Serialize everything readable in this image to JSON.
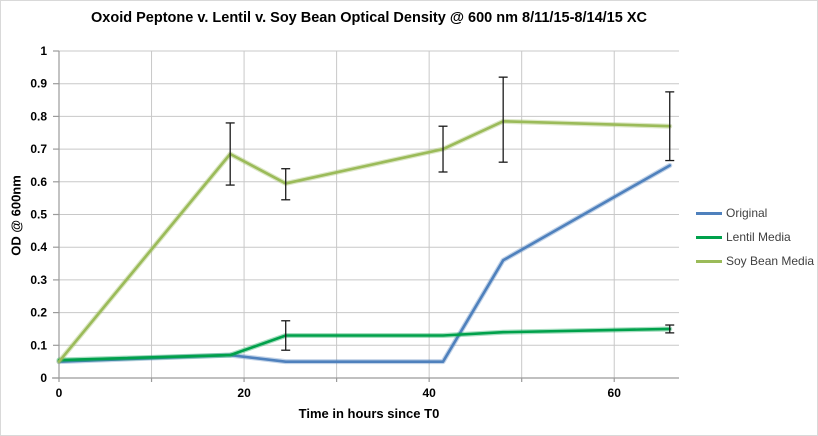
{
  "chart_data": {
    "type": "line",
    "title": "Oxoid Peptone v. Lentil v. Soy Bean Optical Density @ 600 nm 8/11/15-8/14/15 XC",
    "xlabel": "Time in hours since T0",
    "ylabel": "OD @ 600nm",
    "x": [
      0,
      18.5,
      24.5,
      41.5,
      48,
      66
    ],
    "xlim": [
      0,
      67
    ],
    "ylim": [
      0,
      1
    ],
    "grid": true,
    "legend_position": "right",
    "x_ticks": {
      "values": [
        0,
        20,
        40,
        60
      ],
      "labels": [
        "0",
        "20",
        "40",
        "60"
      ]
    },
    "x_gridlines": [
      10,
      20,
      30,
      40,
      50,
      60
    ],
    "y_ticks": {
      "values": [
        0,
        0.1,
        0.2,
        0.3,
        0.4,
        0.5,
        0.6,
        0.7,
        0.8,
        0.9,
        1
      ],
      "labels": [
        "0",
        "0.1",
        "0.2",
        "0.3",
        "0.4",
        "0.5",
        "0.6",
        "0.7",
        "0.8",
        "0.9",
        "1"
      ]
    },
    "series": [
      {
        "name": "Original",
        "color": "#4F81BD",
        "values": [
          0.05,
          0.07,
          0.05,
          0.05,
          0.36,
          0.65
        ],
        "error_bars": []
      },
      {
        "name": "Lentil Media",
        "color": "#00A14B",
        "values": [
          0.055,
          0.07,
          0.13,
          0.13,
          0.14,
          0.15
        ],
        "error_bars": [
          {
            "x": 24.5,
            "v": 0.13,
            "plus": 0.045,
            "minus": 0.045
          },
          {
            "x": 66,
            "v": 0.15,
            "plus": 0.012,
            "minus": 0.012
          }
        ]
      },
      {
        "name": "Soy Bean Media",
        "color": "#9BBB59",
        "values": [
          0.05,
          0.685,
          0.595,
          0.7,
          0.785,
          0.77
        ],
        "error_bars": [
          {
            "x": 18.5,
            "v": 0.685,
            "plus": 0.095,
            "minus": 0.095
          },
          {
            "x": 24.5,
            "v": 0.595,
            "plus": 0.045,
            "minus": 0.05
          },
          {
            "x": 41.5,
            "v": 0.7,
            "plus": 0.07,
            "minus": 0.07
          },
          {
            "x": 48,
            "v": 0.785,
            "plus": 0.135,
            "minus": 0.125
          },
          {
            "x": 66,
            "v": 0.77,
            "plus": 0.105,
            "minus": 0.105
          }
        ]
      }
    ],
    "colors": {
      "gridline": "#C8C8C8",
      "axis": "#9B9B9B",
      "error_bar": "#1A1A1A",
      "tick_text": "#000000",
      "legend_text": "#404040",
      "title_text": "#000000"
    }
  }
}
